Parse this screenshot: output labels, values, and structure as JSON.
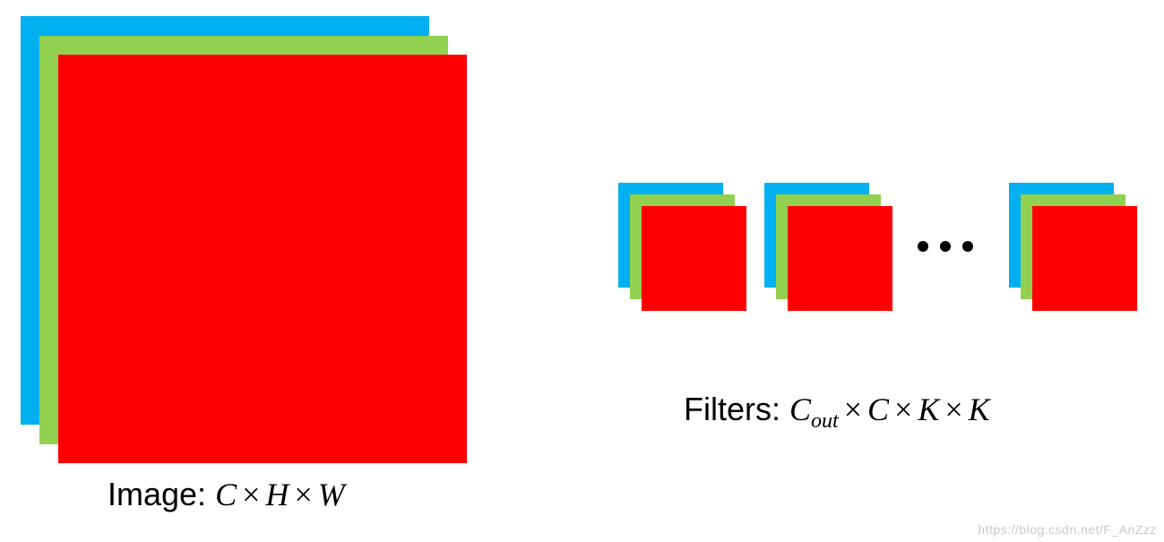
{
  "colors": {
    "blue": "#00B0F0",
    "green": "#92D050",
    "red": "#FF0000"
  },
  "image": {
    "label_prefix": "Image: ",
    "c": "C",
    "times1": "×",
    "h": "H",
    "times2": "×",
    "w": "W"
  },
  "filters": {
    "label_prefix": "Filters: ",
    "c_main": "C",
    "c_sub": "out",
    "times1": "×",
    "c": "C",
    "times2": "×",
    "k1": "K",
    "times3": "×",
    "k2": "K"
  },
  "watermark": "https://blog.csdn.net/F_AnZzz"
}
